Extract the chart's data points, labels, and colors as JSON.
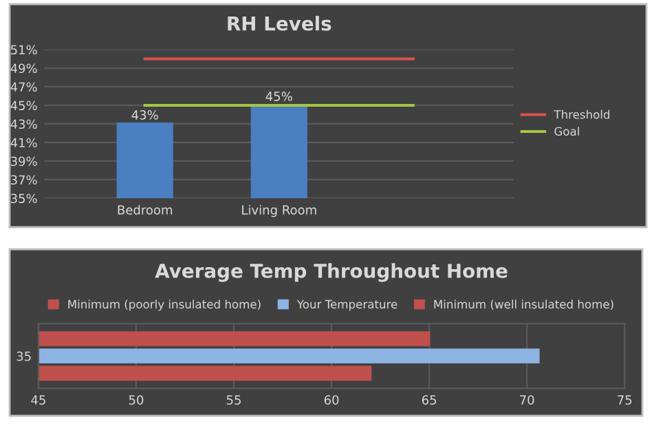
{
  "chart_data": [
    {
      "type": "bar",
      "title": "RH Levels",
      "categories": [
        "Bedroom",
        "Living Room",
        null
      ],
      "series": [
        {
          "name": null,
          "type": "bar",
          "color": "#4a7fc1",
          "values": [
            43,
            45,
            null
          ],
          "value_labels": [
            "43%",
            "45%",
            null
          ]
        },
        {
          "name": "Threshold",
          "type": "line",
          "color": "#d9534f",
          "values": [
            50,
            50,
            50
          ]
        },
        {
          "name": "Goal",
          "type": "line",
          "color": "#a8c545",
          "values": [
            45,
            45,
            45
          ]
        }
      ],
      "ylim": [
        35,
        51
      ],
      "yticks": [
        {
          "value": 35,
          "label": "35%"
        },
        {
          "value": 37,
          "label": "37%"
        },
        {
          "value": 39,
          "label": "39%"
        },
        {
          "value": 41,
          "label": "41%"
        },
        {
          "value": 43,
          "label": "43%"
        },
        {
          "value": 45,
          "label": "45%"
        },
        {
          "value": 47,
          "label": "47%"
        },
        {
          "value": 49,
          "label": "49%"
        },
        {
          "value": 51,
          "label": "51%"
        }
      ],
      "grid": "y",
      "legend": "right"
    },
    {
      "type": "bar",
      "orientation": "horizontal",
      "title": "Average Temp Throughout Home",
      "categories": [
        "35"
      ],
      "series": [
        {
          "name": "Minimum (poorly insulated home)",
          "color": "#c0504d",
          "values": [
            62
          ]
        },
        {
          "name": "Your Temperature",
          "color": "#8db4e2",
          "values": [
            70.6
          ]
        },
        {
          "name": "Minimum (well insulated home)",
          "color": "#c0504d",
          "values": [
            65
          ]
        }
      ],
      "xlim": [
        45,
        75
      ],
      "xticks": [
        45,
        50,
        55,
        60,
        65,
        70,
        75
      ],
      "grid": "x",
      "legend": "top"
    }
  ]
}
